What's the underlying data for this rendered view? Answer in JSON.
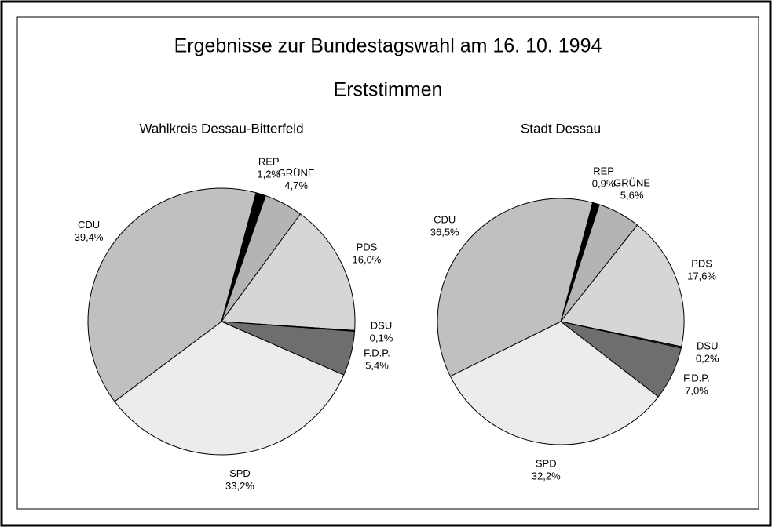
{
  "title": "Ergebnisse zur Bundestagswahl  am 16. 10. 1994",
  "subtitle": "Erststimmen",
  "chart_data": [
    {
      "type": "pie",
      "title": "Wahlkreis Dessau-Bitterfeld",
      "categories": [
        "REP",
        "GRÜNE",
        "PDS",
        "DSU",
        "F.D.P.",
        "SPD",
        "CDU"
      ],
      "values": [
        1.2,
        4.7,
        16.0,
        0.1,
        5.4,
        33.2,
        39.4
      ],
      "value_labels": [
        "1,2%",
        "4,7%",
        "16,0%",
        "0,1%",
        "5,4%",
        "33,2%",
        "39,4%"
      ],
      "colors": [
        "#000000",
        "#b4b4b4",
        "#d6d6d6",
        "#303030",
        "#6e6e6e",
        "#ececec",
        "#c0c0c0"
      ]
    },
    {
      "type": "pie",
      "title": "Stadt Dessau",
      "categories": [
        "REP",
        "GRÜNE",
        "PDS",
        "DSU",
        "F.D.P.",
        "SPD",
        "CDU"
      ],
      "values": [
        0.9,
        5.6,
        17.6,
        0.2,
        7.0,
        32.2,
        36.5
      ],
      "value_labels": [
        "0,9%",
        "5,6%",
        "17,6%",
        "0,2%",
        "7,0%",
        "32,2%",
        "36,5%"
      ],
      "colors": [
        "#000000",
        "#b4b4b4",
        "#d6d6d6",
        "#303030",
        "#6e6e6e",
        "#ececec",
        "#c0c0c0"
      ]
    }
  ]
}
